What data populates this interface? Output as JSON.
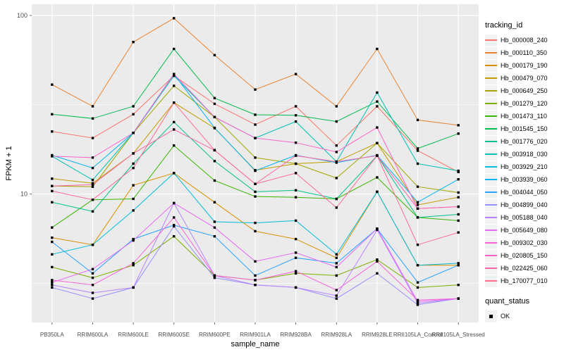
{
  "chart_data": {
    "type": "line",
    "title": "",
    "xlabel": "sample_name",
    "ylabel": "FPKM + 1",
    "y_scale": "log10",
    "ylim": [
      1.9,
      115
    ],
    "y_major_ticks": [
      100,
      10
    ],
    "y_minor_gridlines": [
      31.62,
      3.162
    ],
    "grid": true,
    "panel_bg": "#EBEBEB",
    "grid_color": "#FFFFFF",
    "tick_text_color": "#4D4D4D",
    "point_marker": "black-square",
    "point_color": "#000000",
    "legend_position": "right",
    "legend_title": "tracking_id",
    "legend2": {
      "title": "quant_status",
      "items": [
        {
          "label": "OK",
          "marker": "black-square"
        }
      ]
    },
    "categories": [
      "PB350LA",
      "RRIM600LA",
      "RRIM600LE",
      "RRIM600SE",
      "RRIM600PE",
      "RRIM901LA",
      "RRIM928BA",
      "RRIM928LA",
      "RRIM928LE",
      "RRII105LA_Control",
      "RRII105LA_Stressed"
    ],
    "series": [
      {
        "name": "Hb_000008_240",
        "color": "#F8766D",
        "values": [
          22.4,
          20.6,
          28.0,
          46.0,
          32.0,
          24.5,
          31.0,
          18.7,
          31.0,
          17.5,
          13.3
        ]
      },
      {
        "name": "Hb_000110_350",
        "color": "#EA8331",
        "values": [
          41.0,
          31.0,
          71.0,
          96.5,
          60.0,
          38.5,
          47.0,
          31.0,
          65.0,
          26.0,
          24.3
        ]
      },
      {
        "name": "Hb_000179_190",
        "color": "#D89000",
        "values": [
          5.7,
          5.2,
          11.2,
          13.1,
          9.0,
          6.2,
          5.6,
          4.4,
          10.3,
          4.0,
          4.0
        ]
      },
      {
        "name": "Hb_000479_070",
        "color": "#C09B00",
        "values": [
          12.2,
          11.5,
          16.9,
          32.5,
          23.4,
          13.6,
          14.8,
          15.2,
          19.3,
          8.7,
          9.6
        ]
      },
      {
        "name": "Hb_000649_250",
        "color": "#A3A500",
        "values": [
          11.1,
          11.0,
          22.0,
          40.4,
          27.0,
          16.0,
          14.8,
          12.3,
          19.3,
          11.0,
          10.2
        ]
      },
      {
        "name": "Hb_001279_120",
        "color": "#7CAE00",
        "values": [
          3.9,
          3.4,
          4.0,
          5.8,
          3.5,
          3.3,
          3.6,
          3.5,
          4.3,
          3.0,
          3.1
        ]
      },
      {
        "name": "Hb_001473_110",
        "color": "#39B600",
        "values": [
          6.5,
          9.3,
          9.4,
          18.7,
          11.9,
          9.7,
          9.6,
          9.4,
          12.4,
          7.4,
          7.1
        ]
      },
      {
        "name": "Hb_001545_150",
        "color": "#00BB4E",
        "values": [
          28.0,
          26.5,
          31.0,
          65.0,
          34.5,
          27.8,
          27.6,
          25.5,
          33.0,
          18.0,
          21.8
        ]
      },
      {
        "name": "Hb_001776_020",
        "color": "#00C087",
        "values": [
          9.0,
          8.0,
          14.8,
          25.3,
          15.3,
          10.3,
          10.5,
          9.4,
          16.4,
          7.4,
          7.7
        ]
      },
      {
        "name": "Hb_003918_030",
        "color": "#00C0B2",
        "values": [
          16.3,
          12.0,
          22.0,
          46.0,
          27.0,
          20.6,
          25.5,
          15.2,
          37.0,
          14.8,
          13.5
        ]
      },
      {
        "name": "Hb_003929_210",
        "color": "#00BCD8",
        "values": [
          4.6,
          5.2,
          8.1,
          13.1,
          7.0,
          6.9,
          7.1,
          4.6,
          10.3,
          4.0,
          4.1
        ]
      },
      {
        "name": "Hb_003939_060",
        "color": "#00B3F2",
        "values": [
          16.5,
          14.0,
          22.0,
          47.0,
          23.5,
          13.5,
          16.5,
          15.0,
          16.5,
          9.0,
          12.1
        ]
      },
      {
        "name": "Hb_004044_050",
        "color": "#29A3FF",
        "values": [
          5.4,
          3.6,
          5.6,
          6.7,
          5.8,
          3.5,
          4.4,
          4.1,
          6.4,
          3.2,
          4.0
        ]
      },
      {
        "name": "Hb_004899_040",
        "color": "#9590FF",
        "values": [
          3.0,
          2.6,
          3.0,
          6.6,
          3.4,
          3.1,
          3.0,
          2.6,
          3.6,
          2.4,
          2.6
        ]
      },
      {
        "name": "Hb_005188_040",
        "color": "#B983FF",
        "values": [
          3.1,
          2.8,
          3.0,
          8.9,
          3.5,
          3.1,
          3.0,
          2.7,
          6.3,
          2.45,
          2.6
        ]
      },
      {
        "name": "Hb_005649_080",
        "color": "#E76BF3",
        "values": [
          3.2,
          3.8,
          5.5,
          8.9,
          6.5,
          4.2,
          4.7,
          3.9,
          6.4,
          2.5,
          2.6
        ]
      },
      {
        "name": "Hb_009302_030",
        "color": "#FA62DB",
        "values": [
          3.3,
          3.1,
          4.1,
          7.4,
          3.5,
          3.3,
          3.7,
          2.9,
          4.2,
          2.55,
          2.6
        ]
      },
      {
        "name": "Hb_020805_150",
        "color": "#FF61C9",
        "values": [
          16.3,
          16.0,
          22.0,
          47.0,
          27.0,
          20.6,
          19.4,
          17.2,
          23.6,
          8.3,
          8.5
        ]
      },
      {
        "name": "Hb_022425_060",
        "color": "#FF67A9",
        "values": [
          11.1,
          11.3,
          16.9,
          23.0,
          17.6,
          11.4,
          16.4,
          15.2,
          16.4,
          8.3,
          8.5
        ]
      },
      {
        "name": "Hb_170077_010",
        "color": "#FF6C91",
        "values": [
          10.4,
          9.3,
          14.0,
          32.5,
          17.6,
          11.4,
          13.1,
          8.4,
          16.4,
          5.2,
          6.1
        ]
      }
    ]
  }
}
